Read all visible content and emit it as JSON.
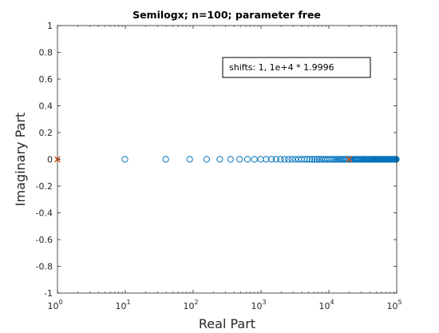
{
  "chart_data": {
    "type": "scatter",
    "title": "Semilogx; n=100; parameter free",
    "xlabel": "Real Part",
    "ylabel": "Imaginary Part",
    "xscale": "log",
    "xlim": [
      1,
      100000
    ],
    "ylim": [
      -1,
      1
    ],
    "x_ticks": [
      {
        "base": "10",
        "exp": "0"
      },
      {
        "base": "10",
        "exp": "1"
      },
      {
        "base": "10",
        "exp": "2"
      },
      {
        "base": "10",
        "exp": "3"
      },
      {
        "base": "10",
        "exp": "4"
      },
      {
        "base": "10",
        "exp": "5"
      }
    ],
    "y_ticks": [
      "-1",
      "-0.8",
      "-0.6",
      "-0.4",
      "-0.2",
      "0",
      "0.2",
      "0.4",
      "0.6",
      "0.8",
      "1"
    ],
    "annotation": "shifts: 1, 1e+4 * 1.9996",
    "grid": false,
    "series": [
      {
        "marker": "circle",
        "color": "#0072BD",
        "n": 100,
        "x_min": 9.87,
        "x_max": 39990,
        "y": 0
      },
      {
        "marker": "x",
        "color": "#D95319",
        "points": [
          {
            "x": 1,
            "y": 0
          },
          {
            "x": 19996,
            "y": 0
          }
        ]
      }
    ]
  }
}
